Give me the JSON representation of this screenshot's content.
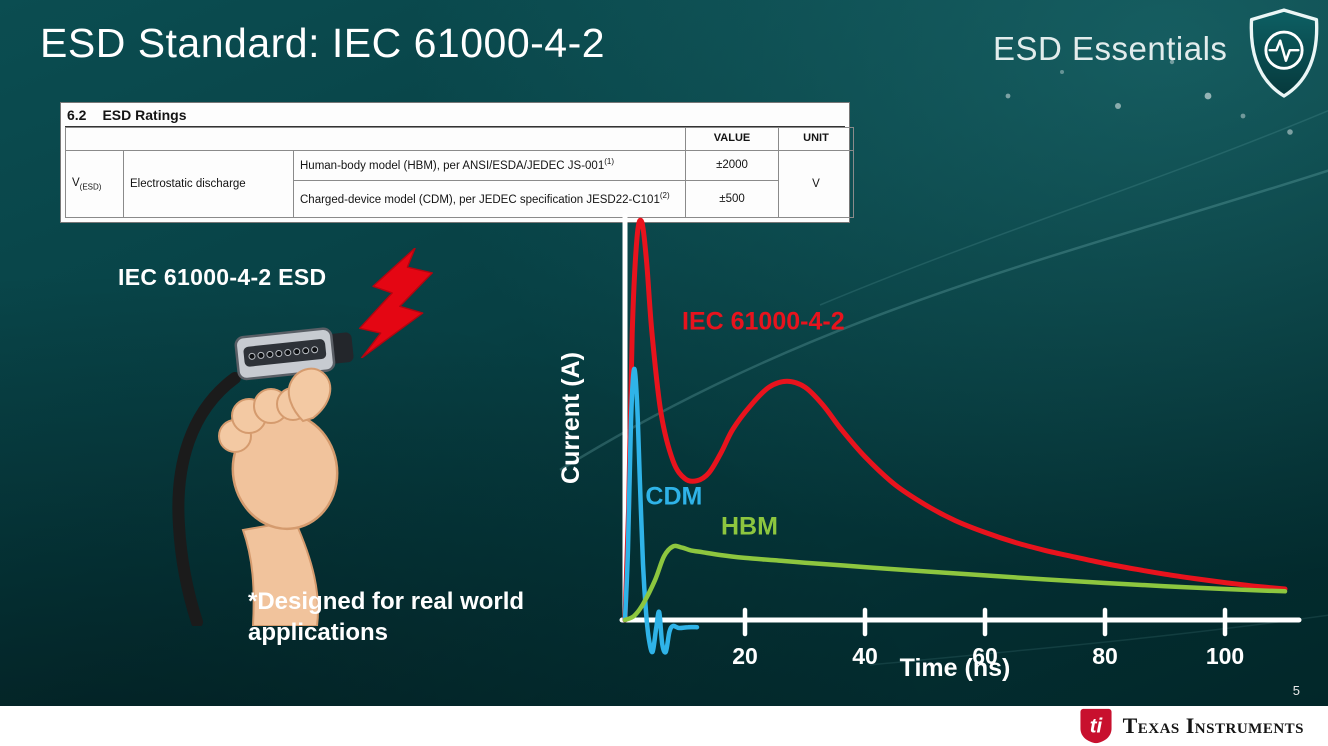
{
  "slide": {
    "title": "ESD Standard: IEC 61000-4-2",
    "brand": "ESD Essentials",
    "page_number": "5",
    "illustration_label": "IEC 61000-4-2 ESD",
    "footnote": "*Designed for real world applications"
  },
  "icons": {
    "brand_shield": "shield-heartbeat-icon",
    "esd_bolt": "lightning-bolt-icon",
    "connector": "hdmi-connector-in-hand-illustration",
    "ti_logo": "ti-bug-icon"
  },
  "ratings_table": {
    "section_number": "6.2",
    "section_title": "ESD Ratings",
    "value_header": "VALUE",
    "unit_header": "UNIT",
    "parameter_symbol": "V",
    "parameter_subscript": "(ESD)",
    "parameter_name": "Electrostatic discharge",
    "rows": [
      {
        "description": "Human-body model (HBM), per ANSI/ESDA/JEDEC JS-001",
        "superscript": "(1)",
        "value": "±2000"
      },
      {
        "description": "Charged-device model (CDM), per JEDEC specification JESD22-C101",
        "superscript": "(2)",
        "value": "±500"
      }
    ],
    "unit": "V"
  },
  "footer": {
    "logo_text": "Texas Instruments"
  },
  "chart_data": {
    "type": "line",
    "title": "",
    "xlabel": "Time (ns)",
    "ylabel": "Current (A)",
    "xlim": [
      0,
      112
    ],
    "ylim": [
      -0.12,
      1.05
    ],
    "x_ticks": [
      20,
      40,
      60,
      80,
      100
    ],
    "grid": false,
    "legend": "inline-labels",
    "series": [
      {
        "name": "IEC 61000-4-2",
        "color": "#e8131d",
        "label_pos": {
          "x": 9.5,
          "y": 0.73
        },
        "points": [
          [
            0,
            0
          ],
          [
            0.6,
            0.28
          ],
          [
            1.2,
            0.72
          ],
          [
            2,
            0.96
          ],
          [
            2.8,
            1.0
          ],
          [
            3.6,
            0.9
          ],
          [
            4.5,
            0.72
          ],
          [
            6,
            0.52
          ],
          [
            8,
            0.4
          ],
          [
            10,
            0.355
          ],
          [
            12,
            0.35
          ],
          [
            14,
            0.37
          ],
          [
            16,
            0.42
          ],
          [
            18,
            0.48
          ],
          [
            21,
            0.54
          ],
          [
            24,
            0.585
          ],
          [
            27,
            0.6
          ],
          [
            30,
            0.585
          ],
          [
            33,
            0.54
          ],
          [
            36,
            0.48
          ],
          [
            40,
            0.41
          ],
          [
            45,
            0.34
          ],
          [
            50,
            0.29
          ],
          [
            55,
            0.25
          ],
          [
            60,
            0.22
          ],
          [
            65,
            0.195
          ],
          [
            70,
            0.175
          ],
          [
            75,
            0.158
          ],
          [
            80,
            0.142
          ],
          [
            85,
            0.128
          ],
          [
            90,
            0.115
          ],
          [
            95,
            0.104
          ],
          [
            100,
            0.094
          ],
          [
            105,
            0.085
          ],
          [
            110,
            0.078
          ]
        ]
      },
      {
        "name": "CDM",
        "color": "#2fb3e8",
        "label_pos": {
          "x": 3.4,
          "y": 0.29
        },
        "points": [
          [
            0,
            0
          ],
          [
            0.5,
            0.18
          ],
          [
            1,
            0.5
          ],
          [
            1.5,
            0.63
          ],
          [
            2,
            0.55
          ],
          [
            2.5,
            0.34
          ],
          [
            3,
            0.14
          ],
          [
            3.5,
            0.02
          ],
          [
            4,
            -0.05
          ],
          [
            4.6,
            -0.08
          ],
          [
            5.2,
            -0.02
          ],
          [
            5.7,
            0.02
          ],
          [
            6.2,
            -0.06
          ],
          [
            6.8,
            -0.08
          ],
          [
            7.4,
            -0.03
          ],
          [
            8,
            -0.015
          ],
          [
            9,
            -0.02
          ],
          [
            10.5,
            -0.018
          ],
          [
            12,
            -0.018
          ]
        ]
      },
      {
        "name": "HBM",
        "color": "#8dc63f",
        "label_pos": {
          "x": 16,
          "y": 0.215
        },
        "points": [
          [
            0,
            0
          ],
          [
            1.5,
            0.01
          ],
          [
            3,
            0.04
          ],
          [
            5,
            0.1
          ],
          [
            6.5,
            0.16
          ],
          [
            8,
            0.185
          ],
          [
            9.5,
            0.182
          ],
          [
            11,
            0.175
          ],
          [
            13,
            0.17
          ],
          [
            16,
            0.163
          ],
          [
            20,
            0.156
          ],
          [
            25,
            0.15
          ],
          [
            30,
            0.144
          ],
          [
            40,
            0.133
          ],
          [
            50,
            0.122
          ],
          [
            60,
            0.112
          ],
          [
            70,
            0.102
          ],
          [
            80,
            0.093
          ],
          [
            90,
            0.085
          ],
          [
            100,
            0.078
          ],
          [
            106,
            0.074
          ],
          [
            110,
            0.072
          ]
        ]
      }
    ]
  }
}
